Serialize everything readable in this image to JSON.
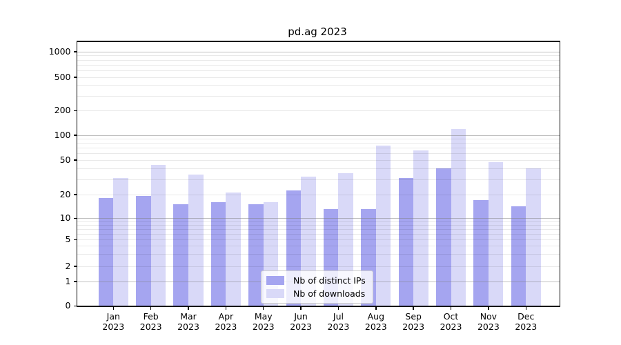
{
  "chart_data": {
    "type": "bar",
    "title": "pd.ag 2023",
    "categories": [
      "Jan",
      "Feb",
      "Mar",
      "Apr",
      "May",
      "Jun",
      "Jul",
      "Aug",
      "Sep",
      "Oct",
      "Nov",
      "Dec"
    ],
    "category_year": "2023",
    "series": [
      {
        "name": "Nb of distinct IPs",
        "color": "#a5a5f0",
        "values": [
          18,
          19,
          15,
          16,
          15,
          22,
          13,
          13,
          31,
          40,
          17,
          14
        ]
      },
      {
        "name": "Nb of downloads",
        "color": "#d9d9f8",
        "values": [
          31,
          44,
          34,
          21,
          16,
          32,
          35,
          74,
          65,
          118,
          47,
          40
        ]
      }
    ],
    "yscale": "symlog",
    "y_ticks": [
      0,
      1,
      2,
      5,
      10,
      20,
      50,
      100,
      200,
      500,
      1000
    ],
    "ylim": [
      0,
      1340
    ],
    "grid": true,
    "grid_on_top_of_bars": true,
    "legend_position": "lower center",
    "background": "#ffffff"
  }
}
